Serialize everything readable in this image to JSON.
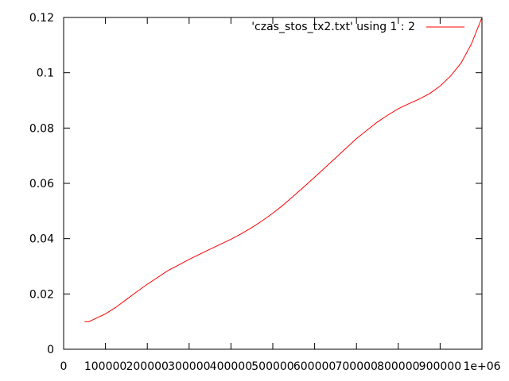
{
  "chart_data": {
    "type": "line",
    "title": "",
    "xlabel": "",
    "ylabel": "",
    "xlim": [
      0,
      1000000
    ],
    "ylim": [
      0,
      0.12
    ],
    "x_ticks": [
      {
        "value": 0,
        "label": "0"
      },
      {
        "value": 100000,
        "label": "100000"
      },
      {
        "value": 200000,
        "label": "200000"
      },
      {
        "value": 300000,
        "label": "300000"
      },
      {
        "value": 400000,
        "label": "400000"
      },
      {
        "value": 500000,
        "label": "500000"
      },
      {
        "value": 600000,
        "label": "600000"
      },
      {
        "value": 700000,
        "label": "700000"
      },
      {
        "value": 800000,
        "label": "800000"
      },
      {
        "value": 900000,
        "label": "900000"
      },
      {
        "value": 1000000,
        "label": "1e+06"
      }
    ],
    "y_ticks": [
      {
        "value": 0,
        "label": "0"
      },
      {
        "value": 0.02,
        "label": "0.02"
      },
      {
        "value": 0.04,
        "label": "0.04"
      },
      {
        "value": 0.06,
        "label": "0.06"
      },
      {
        "value": 0.08,
        "label": "0.08"
      },
      {
        "value": 0.1,
        "label": "0.1"
      },
      {
        "value": 0.12,
        "label": "0.12"
      }
    ],
    "grid": false,
    "legend_position": "top-right",
    "series": [
      {
        "name": "'czas_stos_tx2.txt' using 1 : 2",
        "color": "#ff0000",
        "x": [
          50000,
          60000,
          75000,
          100000,
          125000,
          150000,
          175000,
          200000,
          250000,
          275000,
          300000,
          350000,
          400000,
          425000,
          450000,
          475000,
          500000,
          525000,
          550000,
          575000,
          600000,
          625000,
          650000,
          675000,
          700000,
          725000,
          750000,
          775000,
          800000,
          825000,
          850000,
          875000,
          900000,
          925000,
          950000,
          975000,
          1000000
        ],
        "y": [
          0.01,
          0.01,
          0.011,
          0.0128,
          0.0152,
          0.018,
          0.0208,
          0.0235,
          0.0285,
          0.0305,
          0.0325,
          0.0362,
          0.0398,
          0.0418,
          0.044,
          0.0465,
          0.0492,
          0.0522,
          0.0555,
          0.0588,
          0.0622,
          0.0657,
          0.0692,
          0.0727,
          0.0762,
          0.0792,
          0.0822,
          0.0847,
          0.087,
          0.0888,
          0.0905,
          0.0925,
          0.0952,
          0.0988,
          0.1035,
          0.1105,
          0.12
        ]
      }
    ]
  }
}
